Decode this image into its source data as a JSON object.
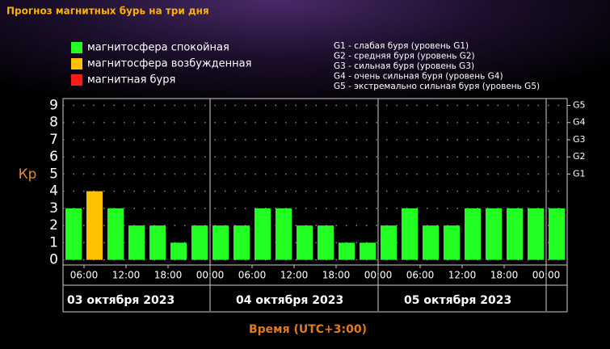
{
  "chart_data": {
    "type": "bar",
    "title": "Прогноз магнитных бурь на три дня",
    "y_label": "Кр",
    "x_label": "Время (UTC+3:00)",
    "legend": [
      {
        "name": "магнитосфера спокойная",
        "color": "#22ff22"
      },
      {
        "name": "магнитосфера возбужденная",
        "color": "#ffc000"
      },
      {
        "name": "магнитная буря",
        "color": "#ff1a1a"
      }
    ],
    "storm_levels": [
      "G1 - слабая буря (уровень G1)",
      "G2 - средняя буря (уровень G2)",
      "G3 - сильная буря (уровень G3)",
      "G4 - очень сильная буря (уровень G4)",
      "G5 - экстремально сильная буря (уровень G5)"
    ],
    "categories": [
      null,
      null,
      null,
      null,
      null,
      null,
      null,
      null,
      null,
      null,
      null,
      null,
      null,
      null,
      null,
      null,
      null,
      null,
      null,
      null,
      null,
      null,
      null,
      null
    ],
    "values": [
      3,
      4,
      3,
      2,
      2,
      1,
      2,
      2,
      2,
      3,
      3,
      2,
      2,
      1,
      1,
      2,
      3,
      2,
      2,
      3,
      3,
      3,
      3,
      3
    ],
    "colors": [
      "#22ff22",
      "#ffc000",
      "#22ff22",
      "#22ff22",
      "#22ff22",
      "#22ff22",
      "#22ff22",
      "#22ff22",
      "#22ff22",
      "#22ff22",
      "#22ff22",
      "#22ff22",
      "#22ff22",
      "#22ff22",
      "#22ff22",
      "#22ff22",
      "#22ff22",
      "#22ff22",
      "#22ff22",
      "#22ff22",
      "#22ff22",
      "#22ff22",
      "#22ff22",
      "#22ff22"
    ],
    "xlim": [
      0,
      24
    ],
    "xticks": [
      {
        "value": 1,
        "label": "06:00"
      },
      {
        "value": 3,
        "label": "12:00"
      },
      {
        "value": 5,
        "label": "18:00"
      },
      {
        "value": 7,
        "label": "00:00"
      },
      {
        "value": 9,
        "label": "06:00"
      },
      {
        "value": 11,
        "label": "12:00"
      },
      {
        "value": 13,
        "label": "18:00"
      },
      {
        "value": 15,
        "label": "00:00"
      },
      {
        "value": 17,
        "label": "06:00"
      },
      {
        "value": 19,
        "label": "12:00"
      },
      {
        "value": 21,
        "label": "18:00"
      },
      {
        "value": 23,
        "label": "00:00"
      }
    ],
    "days": [
      "03 октября 2023",
      "04 октября 2023",
      "05 октября 2023"
    ],
    "ylim": [
      -0.3,
      9.4
    ],
    "yticks": [
      0,
      1,
      2,
      3,
      4,
      5,
      6,
      7,
      8,
      9
    ],
    "y2lim": [
      -0.3,
      9.4
    ],
    "y2ticks": [
      {
        "value": 5,
        "label": "G1"
      },
      {
        "value": 6,
        "label": "G2"
      },
      {
        "value": 7,
        "label": "G3"
      },
      {
        "value": 8,
        "label": "G4"
      },
      {
        "value": 9,
        "label": "G5"
      }
    ],
    "grid": true
  }
}
